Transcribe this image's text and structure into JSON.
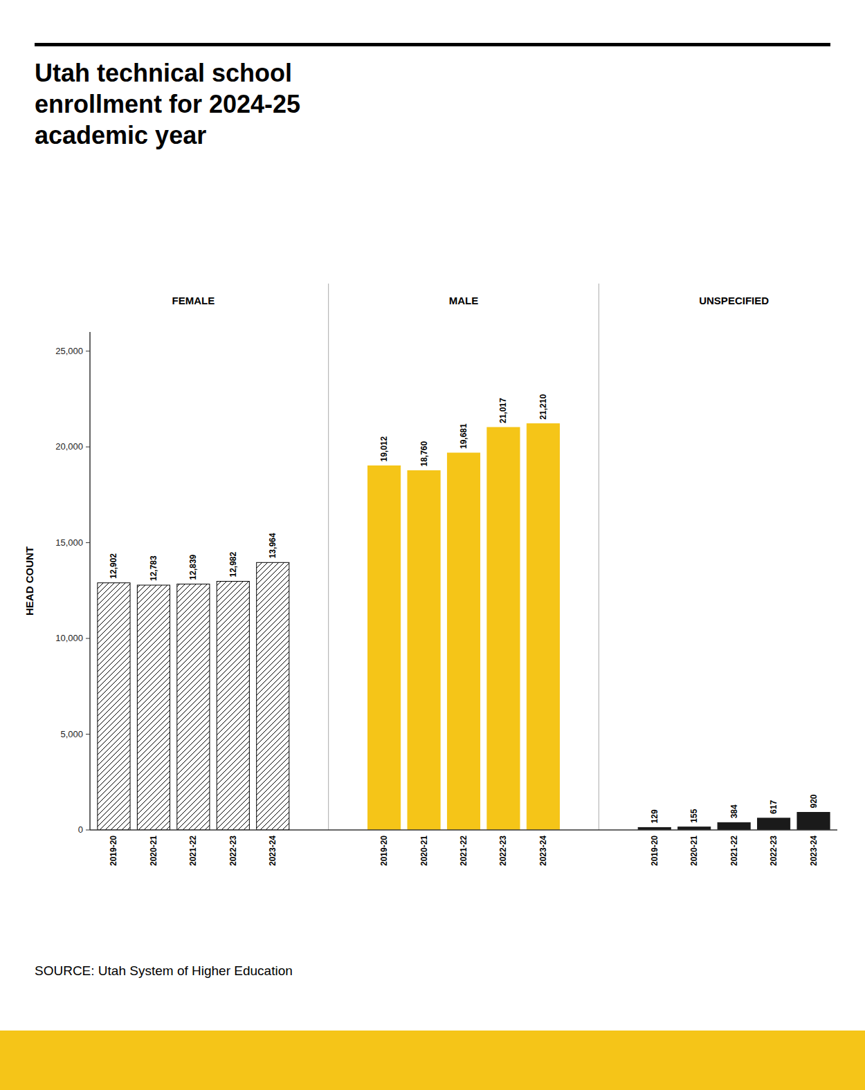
{
  "chart_data": {
    "type": "bar",
    "title": "Utah technical school\nenrollment for 2024-25\nacademic year",
    "source": "SOURCE: Utah System of Higher Education",
    "ylabel": "HEAD COUNT",
    "categories": [
      "2019-20",
      "2020-21",
      "2021-22",
      "2022-23",
      "2023-24"
    ],
    "series": [
      {
        "name": "FEMALE",
        "color": "#ffffff",
        "values": [
          12902,
          12783,
          12839,
          12982,
          13964
        ],
        "value_labels": [
          "12,902",
          "12,783",
          "12,839",
          "12,982",
          "13,964"
        ]
      },
      {
        "name": "MALE",
        "color": "#F5C518",
        "values": [
          19012,
          18760,
          19681,
          21017,
          21210
        ],
        "value_labels": [
          "19,012",
          "18,760",
          "19,681",
          "21,017",
          "21,210"
        ]
      },
      {
        "name": "UNSPECIFIED",
        "color": "#1a1a1a",
        "values": [
          129,
          155,
          384,
          617,
          920
        ],
        "value_labels": [
          "129",
          "155",
          "384",
          "617",
          "920"
        ]
      }
    ],
    "ylim": [
      0,
      26000
    ],
    "yticks": [
      0,
      {
        "value": 5000,
        "label": "5,000"
      },
      {
        "value": 10000,
        "label": "10,000"
      },
      {
        "value": 15000,
        "label": "15,000"
      },
      {
        "value": 20000,
        "label": "20,000"
      },
      {
        "value": 25000,
        "label": "25,000"
      }
    ],
    "grid": false,
    "data_labels": true
  }
}
